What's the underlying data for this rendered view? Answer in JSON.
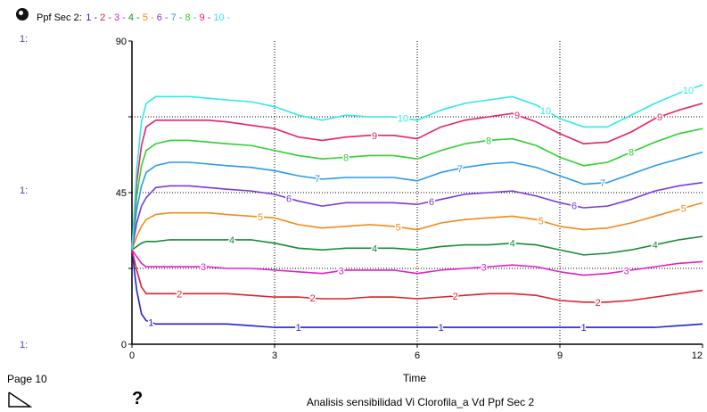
{
  "header": {
    "variable_label": "Ppf Sec 2:",
    "series_legend": [
      {
        "text": "1",
        "color": "#2020e0"
      },
      {
        "text": "2",
        "color": "#e0202a"
      },
      {
        "text": "3",
        "color": "#e020c8"
      },
      {
        "text": "4",
        "color": "#1a8a3a"
      },
      {
        "text": "5",
        "color": "#f08a1a"
      },
      {
        "text": "6",
        "color": "#7a3ad8"
      },
      {
        "text": "7",
        "color": "#2a9ae8"
      },
      {
        "text": "8",
        "color": "#30d030"
      },
      {
        "text": "9",
        "color": "#e8206a"
      },
      {
        "text": "10",
        "color": "#30e8e8"
      }
    ],
    "icon": "graph-pad-icon"
  },
  "y_axis_ids": [
    "1:",
    "1:",
    "1:"
  ],
  "footer": {
    "page_label": "Page 10",
    "page_icon": "page-corner-icon",
    "help_label": "?",
    "title": "Analisis sensibilidad Vi Clorofila_a Vd Ppf Sec 2"
  },
  "chart_data": {
    "type": "line",
    "xlabel": "Time",
    "ylabel": "",
    "xlim": [
      0,
      12
    ],
    "ylim": [
      0,
      90
    ],
    "x_ticks": [
      "0",
      "3",
      "6",
      "9",
      "12"
    ],
    "y_ticks": [
      "0",
      "45",
      "90"
    ],
    "grid": true,
    "x": [
      0,
      0.1,
      0.2,
      0.3,
      0.5,
      0.8,
      1.2,
      1.6,
      2,
      2.5,
      3,
      3.5,
      4,
      4.5,
      5,
      5.5,
      6,
      6.5,
      7,
      7.5,
      8,
      8.5,
      9,
      9.5,
      10,
      10.5,
      11,
      11.5,
      12
    ],
    "series": [
      {
        "name": "1",
        "color": "#2020e0",
        "values": [
          28,
          16,
          9,
          7,
          6,
          6,
          6,
          6,
          6,
          5.5,
          5,
          5,
          5,
          5,
          5,
          5,
          5,
          5,
          5,
          5,
          5,
          5,
          5,
          5,
          5,
          5,
          5,
          5.5,
          6
        ]
      },
      {
        "name": "2",
        "color": "#e0202a",
        "values": [
          28,
          22,
          17,
          15,
          15,
          15,
          15,
          15,
          15,
          14.5,
          14,
          14,
          13.5,
          13.5,
          14,
          14,
          13.5,
          14,
          14.5,
          15,
          15,
          14.5,
          13,
          12.5,
          12.5,
          13,
          14,
          15,
          16
        ]
      },
      {
        "name": "3",
        "color": "#e020c8",
        "values": [
          28,
          26,
          24,
          23,
          23,
          23,
          23,
          23,
          22.5,
          22.5,
          22,
          21.5,
          21,
          22,
          22,
          22,
          21,
          22,
          22.5,
          23,
          23.5,
          23,
          21.5,
          20.5,
          21,
          22,
          23,
          24,
          24.5
        ]
      },
      {
        "name": "4",
        "color": "#1a8a3a",
        "values": [
          28,
          29,
          30,
          30.5,
          30.5,
          31,
          31,
          31,
          31,
          31,
          30,
          28.5,
          28,
          28.5,
          28.5,
          28.5,
          28,
          29,
          29.5,
          29.5,
          30,
          29.5,
          28,
          26.5,
          27,
          28,
          29.5,
          31,
          32
        ]
      },
      {
        "name": "5",
        "color": "#f08a1a",
        "values": [
          28,
          32,
          35,
          37,
          38.5,
          39,
          39,
          39,
          38.5,
          38,
          37.5,
          35.5,
          34.5,
          35,
          35.5,
          35,
          34,
          36,
          37,
          37.5,
          38,
          37,
          35,
          34,
          34.5,
          36,
          38,
          40,
          42
        ]
      },
      {
        "name": "6",
        "color": "#7a3ad8",
        "values": [
          28,
          36,
          41,
          43.5,
          46.5,
          47,
          47,
          46.5,
          46,
          45.5,
          44.5,
          42.5,
          41,
          42,
          42,
          42,
          41.5,
          43,
          44.5,
          45,
          45.5,
          44,
          42,
          40.5,
          41,
          43,
          45.5,
          47,
          48
        ]
      },
      {
        "name": "7",
        "color": "#2a9ae8",
        "values": [
          28,
          40,
          47,
          51,
          53,
          54,
          54,
          53.5,
          53,
          52.5,
          51.5,
          50,
          49,
          49.5,
          49.5,
          49.5,
          48.5,
          51,
          52.5,
          53.5,
          54,
          52.5,
          50,
          47.5,
          48,
          50.5,
          53,
          55,
          57
        ]
      },
      {
        "name": "8",
        "color": "#30d030",
        "values": [
          28,
          44,
          53,
          57.5,
          59.5,
          60.5,
          60.5,
          60,
          59.5,
          59,
          57.5,
          56,
          55,
          55.5,
          56,
          56,
          55,
          57.5,
          59.5,
          60.5,
          61,
          59,
          55.5,
          53,
          54,
          57,
          60,
          62.5,
          64
        ]
      },
      {
        "name": "9",
        "color": "#e8206a",
        "values": [
          28,
          48,
          59,
          64.5,
          66.5,
          66.5,
          66.5,
          66.5,
          66,
          65,
          64,
          61.5,
          60.5,
          61.5,
          62,
          62,
          61,
          64.5,
          66.5,
          67.5,
          68.5,
          66,
          62.5,
          59.5,
          60,
          63,
          67,
          69.5,
          71.5
        ]
      },
      {
        "name": "10",
        "color": "#30e8e8",
        "values": [
          28,
          52,
          66,
          71.5,
          73.5,
          73.5,
          73.5,
          73,
          72.5,
          72,
          70.5,
          68,
          66.5,
          68,
          67.5,
          67.5,
          66.5,
          69.5,
          71.5,
          72.5,
          73.5,
          71,
          67,
          64.5,
          64.5,
          68,
          71.5,
          74.5,
          77
        ]
      }
    ],
    "label_positions_x": [
      [
        0.4,
        3.5,
        6.5,
        9.5
      ],
      [
        1.0,
        3.8,
        6.8,
        9.8
      ],
      [
        1.5,
        4.4,
        7.4,
        10.4
      ],
      [
        2.1,
        5.1,
        8.0,
        11.0
      ],
      [
        2.7,
        5.6,
        8.6,
        11.6
      ],
      [
        3.3,
        6.3,
        9.3
      ],
      [
        3.9,
        6.9,
        9.9
      ],
      [
        4.5,
        7.5,
        10.5
      ],
      [
        5.1,
        8.1,
        11.1
      ],
      [
        5.7,
        8.7,
        11.7
      ]
    ]
  }
}
